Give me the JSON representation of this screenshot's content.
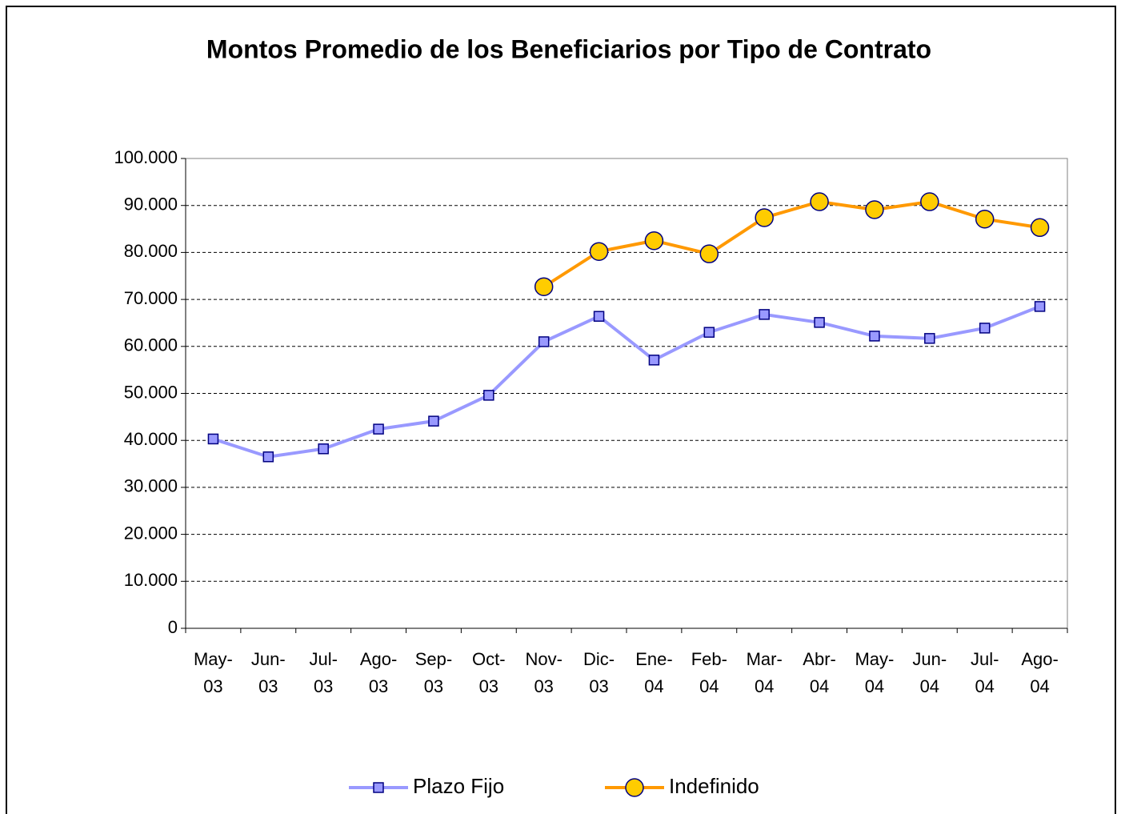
{
  "chart_data": {
    "type": "line",
    "title": "Montos Promedio de los Beneficiarios por Tipo de Contrato",
    "categories": [
      "May-03",
      "Jun-03",
      "Jul-03",
      "Ago-03",
      "Sep-03",
      "Oct-03",
      "Nov-03",
      "Dic-03",
      "Ene-04",
      "Feb-04",
      "Mar-04",
      "Abr-04",
      "May-04",
      "Jun-04",
      "Jul-04",
      "Ago-04"
    ],
    "series": [
      {
        "name": "Plazo Fijo",
        "color": "#9999ff",
        "marker": "square",
        "marker_fill": "#9999ff",
        "values": [
          40300,
          36500,
          38200,
          42400,
          44100,
          49600,
          61000,
          66400,
          57100,
          63000,
          66800,
          65100,
          62200,
          61700,
          63900,
          68500
        ]
      },
      {
        "name": "Indefinido",
        "color": "#ff9900",
        "marker": "circle",
        "marker_fill": "#ffcc00",
        "values": [
          null,
          null,
          null,
          null,
          null,
          null,
          72700,
          80200,
          82500,
          79700,
          87400,
          90800,
          89100,
          90800,
          87100,
          85300
        ]
      }
    ],
    "ylim": [
      0,
      100000
    ],
    "yticks": [
      0,
      {
        "value": 10000,
        "label": "10.000"
      },
      {
        "value": 20000,
        "label": "20.000"
      },
      {
        "value": 30000,
        "label": "30.000"
      },
      {
        "value": 40000,
        "label": "40.000"
      },
      {
        "value": 50000,
        "label": "50.000"
      },
      {
        "value": 60000,
        "label": "60.000"
      },
      {
        "value": 70000,
        "label": "70.000"
      },
      {
        "value": 80000,
        "label": "80.000"
      },
      {
        "value": 90000,
        "label": "90.000"
      },
      {
        "value": 100000,
        "label": "100.000"
      }
    ],
    "grid": true,
    "legend": "bottom"
  }
}
